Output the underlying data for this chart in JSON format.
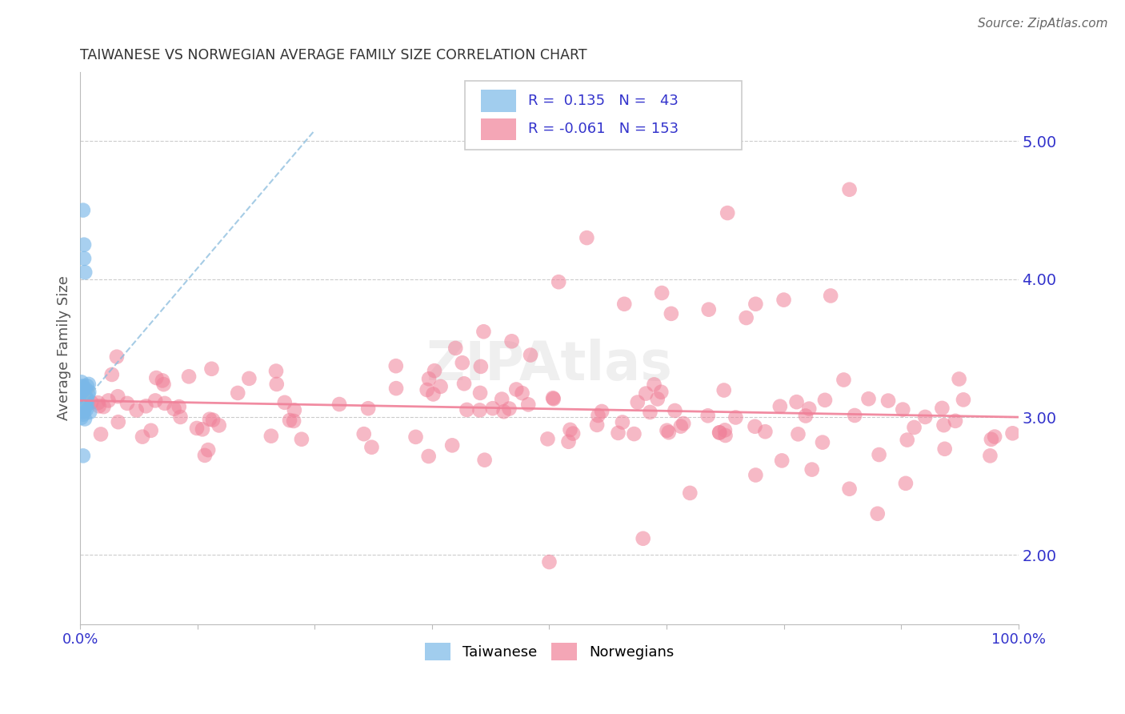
{
  "title": "TAIWANESE VS NORWEGIAN AVERAGE FAMILY SIZE CORRELATION CHART",
  "source": "Source: ZipAtlas.com",
  "ylabel": "Average Family Size",
  "watermark": "ZIPAtlas",
  "right_yticks": [
    2.0,
    3.0,
    4.0,
    5.0
  ],
  "right_yticklabels": [
    "2.00",
    "3.00",
    "4.00",
    "5.00"
  ],
  "title_color": "#333333",
  "axis_color": "#3333cc",
  "grid_color": "#cccccc",
  "taiwanese_color": "#7ab8e8",
  "norwegian_color": "#f08098",
  "taiwanese_trend_color": "#88bbdd",
  "norwegian_trend_color": "#f08098",
  "xlim": [
    0.0,
    1.0
  ],
  "ylim": [
    1.5,
    5.5
  ]
}
